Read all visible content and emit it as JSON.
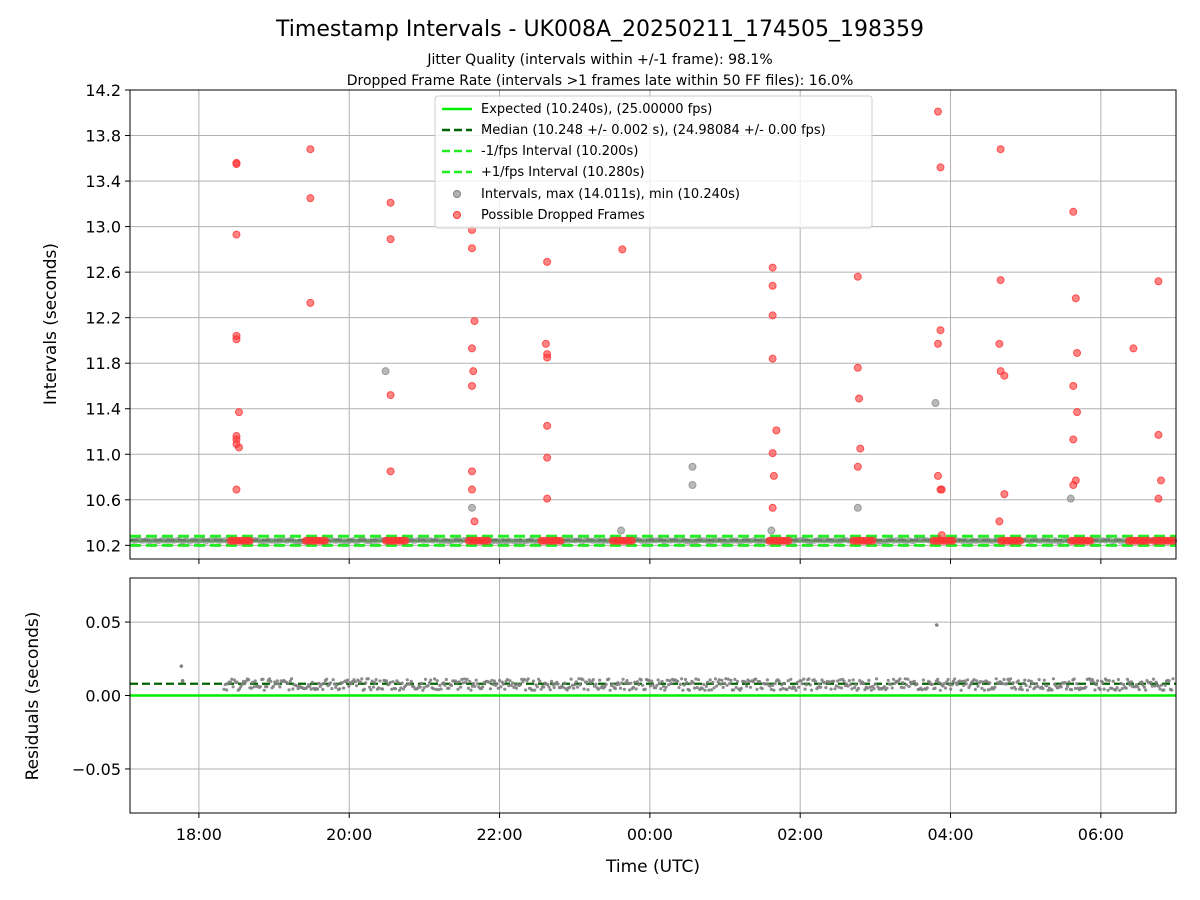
{
  "figure": {
    "title": "Timestamp Intervals - UK008A_20250211_174505_198359",
    "subtitle_1": "Jitter Quality (intervals within +/-1 frame): 98.1%",
    "subtitle_2": "Dropped Frame Rate (intervals >1 frames late within 50 FF files): 16.0%"
  },
  "colors": {
    "expected": "#00ee00",
    "median": "#006400",
    "fps_interval": "#22ee22",
    "intervals": "#808080",
    "dropped": "#ff3333",
    "grid": "#b0b0b0"
  },
  "chart_data": [
    {
      "type": "scatter",
      "ylabel": "Intervals (seconds)",
      "xlim": [
        "17:05",
        "07:00"
      ],
      "ylim": [
        10.08,
        14.2
      ],
      "yticks": [
        "10.2",
        "10.6",
        "11.0",
        "11.4",
        "11.8",
        "12.2",
        "12.6",
        "13.0",
        "13.4",
        "13.8",
        "14.2"
      ],
      "grid": true,
      "legend_position": "top-center",
      "legend": [
        "Expected (10.240s), (25.00000 fps)",
        "Median (10.248 +/- 0.002 s), (24.98084 +/- 0.00 fps)",
        "-1/fps Interval (10.200s)",
        "+1/fps Interval (10.280s)",
        "Intervals, max (14.011s), min (10.240s)",
        "Possible Dropped Frames"
      ],
      "reference_lines": {
        "expected": 10.24,
        "median": 10.248,
        "minus_1_fps": 10.2,
        "plus_1_fps": 10.28
      },
      "series": [
        {
          "name": "Possible Dropped Frames",
          "points": [
            [
              "18:30",
              13.56
            ],
            [
              "18:30",
              13.55
            ],
            [
              "18:30",
              12.93
            ],
            [
              "18:30",
              12.04
            ],
            [
              "18:30",
              12.01
            ],
            [
              "18:32",
              11.37
            ],
            [
              "18:30",
              11.16
            ],
            [
              "18:30",
              11.13
            ],
            [
              "18:30",
              11.09
            ],
            [
              "18:32",
              11.06
            ],
            [
              "18:30",
              10.69
            ],
            [
              "19:29",
              13.68
            ],
            [
              "19:29",
              13.25
            ],
            [
              "19:29",
              12.33
            ],
            [
              "20:33",
              13.21
            ],
            [
              "20:33",
              12.89
            ],
            [
              "20:33",
              11.52
            ],
            [
              "20:33",
              10.85
            ],
            [
              "21:38",
              12.97
            ],
            [
              "21:38",
              12.81
            ],
            [
              "21:40",
              12.17
            ],
            [
              "21:38",
              11.93
            ],
            [
              "21:39",
              11.73
            ],
            [
              "21:38",
              11.6
            ],
            [
              "21:38",
              10.85
            ],
            [
              "21:38",
              10.69
            ],
            [
              "21:40",
              10.41
            ],
            [
              "22:38",
              12.69
            ],
            [
              "22:37",
              11.97
            ],
            [
              "22:38",
              11.88
            ],
            [
              "22:38",
              11.85
            ],
            [
              "22:38",
              11.25
            ],
            [
              "22:38",
              10.97
            ],
            [
              "22:38",
              10.61
            ],
            [
              "23:38",
              12.8
            ],
            [
              "01:38",
              12.64
            ],
            [
              "01:38",
              12.48
            ],
            [
              "01:38",
              12.22
            ],
            [
              "01:38",
              11.84
            ],
            [
              "01:41",
              11.21
            ],
            [
              "01:38",
              11.01
            ],
            [
              "01:39",
              10.81
            ],
            [
              "01:38",
              10.53
            ],
            [
              "02:46",
              12.56
            ],
            [
              "02:46",
              11.76
            ],
            [
              "02:47",
              11.49
            ],
            [
              "02:48",
              11.05
            ],
            [
              "02:46",
              10.89
            ],
            [
              "03:50",
              14.01
            ],
            [
              "03:52",
              13.52
            ],
            [
              "03:52",
              12.09
            ],
            [
              "03:50",
              11.97
            ],
            [
              "03:50",
              10.81
            ],
            [
              "03:52",
              10.69
            ],
            [
              "03:53",
              10.69
            ],
            [
              "03:53",
              10.29
            ],
            [
              "04:40",
              13.68
            ],
            [
              "04:40",
              12.53
            ],
            [
              "04:39",
              11.97
            ],
            [
              "04:40",
              11.73
            ],
            [
              "04:43",
              11.69
            ],
            [
              "04:43",
              10.65
            ],
            [
              "04:39",
              10.41
            ],
            [
              "05:38",
              13.13
            ],
            [
              "05:40",
              12.37
            ],
            [
              "05:41",
              11.89
            ],
            [
              "05:38",
              11.6
            ],
            [
              "05:41",
              11.37
            ],
            [
              "05:38",
              11.13
            ],
            [
              "05:40",
              10.77
            ],
            [
              "05:38",
              10.73
            ],
            [
              "06:26",
              11.93
            ],
            [
              "06:46",
              12.52
            ],
            [
              "06:46",
              11.17
            ],
            [
              "06:48",
              10.77
            ],
            [
              "06:46",
              10.61
            ]
          ]
        },
        {
          "name": "Intervals, max (14.011s), min (10.240s)",
          "points": [
            [
              "20:29",
              11.73
            ],
            [
              "21:38",
              10.53
            ],
            [
              "23:37",
              10.33
            ],
            [
              "00:34",
              10.89
            ],
            [
              "00:34",
              10.73
            ],
            [
              "01:37",
              10.33
            ],
            [
              "02:46",
              10.53
            ],
            [
              "03:48",
              11.45
            ],
            [
              "05:36",
              10.61
            ]
          ]
        }
      ],
      "dropped_frame_clusters_near_expected": [
        "18:33",
        "19:33",
        "20:37",
        "21:43",
        "22:41",
        "23:38",
        "01:43",
        "02:50",
        "03:54",
        "04:48",
        "05:44",
        "06:30",
        "06:50"
      ]
    },
    {
      "type": "scatter",
      "ylabel": "Residuals (seconds)",
      "xlabel": "Time (UTC)",
      "xlim": [
        "17:05",
        "07:00"
      ],
      "ylim": [
        -0.08,
        0.08
      ],
      "yticks": [
        "−0.05",
        "0.00",
        "0.05"
      ],
      "xticks": [
        "18:00",
        "20:00",
        "22:00",
        "00:00",
        "02:00",
        "04:00",
        "06:00"
      ],
      "grid": true,
      "reference_lines": {
        "expected": 0.0,
        "median": 0.008
      },
      "residual_band": {
        "center": 0.0075,
        "spread": 0.004
      },
      "outliers": [
        [
          "17:46",
          0.02
        ],
        [
          "17:47",
          0.01
        ],
        [
          "03:49",
          0.048
        ]
      ]
    }
  ]
}
